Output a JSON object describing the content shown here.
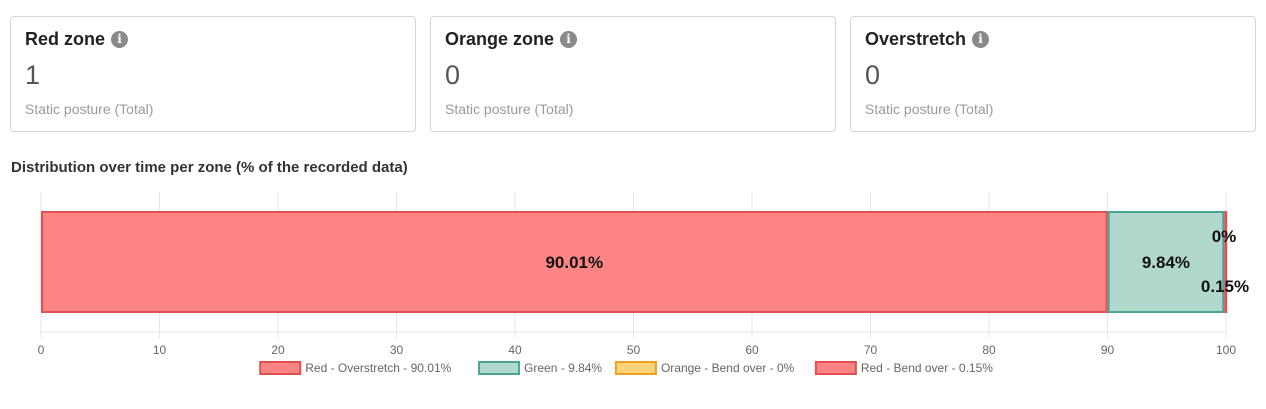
{
  "cards": [
    {
      "title": "Red zone",
      "value": "1",
      "sub": "Static posture (Total)",
      "icon": "info-icon"
    },
    {
      "title": "Orange zone",
      "value": "0",
      "sub": "Static posture (Total)",
      "icon": "info-icon"
    },
    {
      "title": "Overstretch",
      "value": "0",
      "sub": "Static posture (Total)",
      "icon": "info-icon"
    }
  ],
  "section_title": "Distribution over time per zone (% of the recorded data)",
  "chart_data": {
    "type": "bar",
    "orientation": "horizontal",
    "stacked": true,
    "title": "",
    "xlabel": "",
    "ylabel": "",
    "xlim": [
      0,
      100
    ],
    "xticks": [
      0,
      10,
      20,
      30,
      40,
      50,
      60,
      70,
      80,
      90,
      100
    ],
    "grid": true,
    "legend_position": "bottom",
    "series": [
      {
        "name": "Red - Overstretch - 90.01%",
        "value": 90.01,
        "label": "90.01%",
        "fill": "#ff8585",
        "stroke": "#e05050"
      },
      {
        "name": "Green - 9.84%",
        "value": 9.84,
        "label": "9.84%",
        "fill": "#b0d8cc",
        "stroke": "#4aa693"
      },
      {
        "name": "Orange - Bend over - 0%",
        "value": 0,
        "label": "0%",
        "fill": "#ffd37a",
        "stroke": "#f0a020"
      },
      {
        "name": "Red - Bend over - 0.15%",
        "value": 0.15,
        "label": "0.15%",
        "fill": "#ff8585",
        "stroke": "#e05050"
      }
    ]
  }
}
